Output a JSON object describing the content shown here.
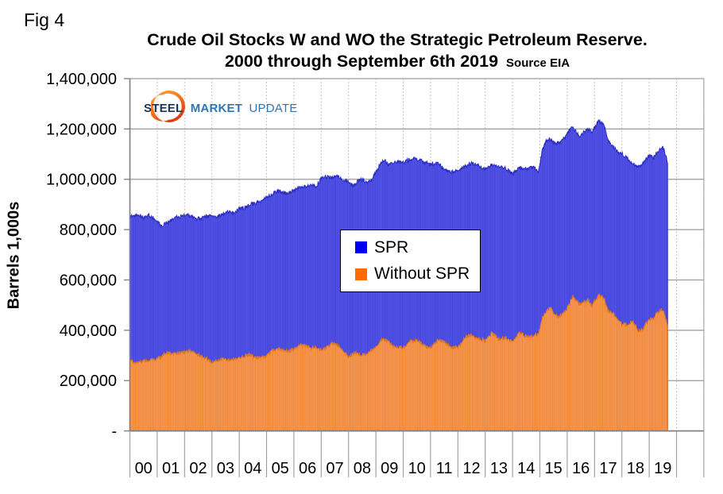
{
  "fig_label": "Fig 4",
  "title": {
    "line1": "Crude Oil Stocks W and WO the Strategic Petroleum Reserve.",
    "line2": "2000 through September 6th 2019",
    "source": "Source EIA"
  },
  "logo": {
    "steel": "STEEL",
    "market": "MARKET",
    "update": "UPDATE"
  },
  "legend": {
    "items": [
      {
        "label": "SPR",
        "color": "#0000f0"
      },
      {
        "label": "Without SPR",
        "color": "#ff6a00"
      }
    ]
  },
  "colors": {
    "spr_fill": "#5b5beb",
    "spr_stripe": "#3336d0",
    "spr_edge": "#2d2fc4",
    "wospr_fill": "#f89b57",
    "wospr_stripe": "#ea7f2e",
    "wospr_edge": "#e0751f",
    "grid": "#9a9a9a",
    "grid_dotted": "#b0b0b0",
    "axis": "#7f7f7f",
    "text": "#000000"
  },
  "chart_data": {
    "type": "area",
    "title": "Crude Oil Stocks W and WO the Strategic Petroleum Reserve. 2000 through September 6th 2019",
    "xlabel": "",
    "ylabel": "Barrels 1,000s",
    "units": "thousand barrels",
    "ylim": [
      0,
      1400000
    ],
    "x_range_years": [
      2000,
      2021
    ],
    "data_end_year": 2019.68,
    "grid": "horizontal solid, yearly vertical dotted",
    "legend_position": "center overlay box",
    "x_tick_labels": [
      "00",
      "01",
      "02",
      "03",
      "04",
      "05",
      "06",
      "07",
      "08",
      "09",
      "10",
      "11",
      "12",
      "13",
      "14",
      "15",
      "16",
      "17",
      "18",
      "19"
    ],
    "y_ticks": [
      {
        "value": 1400000,
        "label": "1,400,000"
      },
      {
        "value": 1200000,
        "label": "1,200,000"
      },
      {
        "value": 1000000,
        "label": "1,000,000"
      },
      {
        "value": 800000,
        "label": "800,000"
      },
      {
        "value": 600000,
        "label": "600,000"
      },
      {
        "value": 400000,
        "label": "400,000"
      },
      {
        "value": 200000,
        "label": "200,000"
      },
      {
        "value": 0,
        "label": "-"
      }
    ],
    "series": [
      {
        "name": "SPR",
        "description": "Total crude oil stocks including the Strategic Petroleum Reserve (top of blue area)",
        "points": [
          [
            2000.0,
            852000
          ],
          [
            2000.3,
            860000
          ],
          [
            2000.5,
            846000
          ],
          [
            2000.7,
            856000
          ],
          [
            2001.0,
            838000
          ],
          [
            2001.15,
            812000
          ],
          [
            2001.4,
            832000
          ],
          [
            2001.6,
            846000
          ],
          [
            2001.8,
            850000
          ],
          [
            2002.0,
            860000
          ],
          [
            2002.2,
            854000
          ],
          [
            2002.4,
            845000
          ],
          [
            2002.6,
            843000
          ],
          [
            2002.8,
            851000
          ],
          [
            2003.0,
            857000
          ],
          [
            2003.2,
            850000
          ],
          [
            2003.4,
            862000
          ],
          [
            2003.6,
            871000
          ],
          [
            2003.8,
            868000
          ],
          [
            2004.0,
            880000
          ],
          [
            2004.2,
            886000
          ],
          [
            2004.4,
            900000
          ],
          [
            2004.6,
            906000
          ],
          [
            2004.8,
            913000
          ],
          [
            2005.0,
            928000
          ],
          [
            2005.2,
            941000
          ],
          [
            2005.4,
            953000
          ],
          [
            2005.6,
            948000
          ],
          [
            2005.8,
            941000
          ],
          [
            2006.0,
            958000
          ],
          [
            2006.2,
            966000
          ],
          [
            2006.4,
            972000
          ],
          [
            2006.6,
            978000
          ],
          [
            2006.8,
            970000
          ],
          [
            2007.0,
            1002000
          ],
          [
            2007.2,
            1010000
          ],
          [
            2007.4,
            1006000
          ],
          [
            2007.6,
            1012000
          ],
          [
            2007.8,
            996000
          ],
          [
            2008.0,
            992000
          ],
          [
            2008.15,
            972000
          ],
          [
            2008.3,
            990000
          ],
          [
            2008.5,
            1000000
          ],
          [
            2008.7,
            985000
          ],
          [
            2008.85,
            1000000
          ],
          [
            2009.0,
            1030000
          ],
          [
            2009.3,
            1080000
          ],
          [
            2009.45,
            1058000
          ],
          [
            2009.6,
            1062000
          ],
          [
            2009.8,
            1072000
          ],
          [
            2010.0,
            1066000
          ],
          [
            2010.3,
            1082000
          ],
          [
            2010.5,
            1080000
          ],
          [
            2010.75,
            1068000
          ],
          [
            2011.0,
            1060000
          ],
          [
            2011.3,
            1062000
          ],
          [
            2011.5,
            1036000
          ],
          [
            2011.75,
            1028000
          ],
          [
            2012.0,
            1036000
          ],
          [
            2012.25,
            1050000
          ],
          [
            2012.5,
            1067000
          ],
          [
            2012.75,
            1055000
          ],
          [
            2013.0,
            1038000
          ],
          [
            2013.25,
            1060000
          ],
          [
            2013.5,
            1053000
          ],
          [
            2013.75,
            1045000
          ],
          [
            2014.0,
            1020000
          ],
          [
            2014.25,
            1045000
          ],
          [
            2014.5,
            1040000
          ],
          [
            2014.75,
            1046000
          ],
          [
            2014.95,
            1032000
          ],
          [
            2015.1,
            1120000
          ],
          [
            2015.25,
            1155000
          ],
          [
            2015.4,
            1160000
          ],
          [
            2015.55,
            1140000
          ],
          [
            2015.7,
            1146000
          ],
          [
            2015.9,
            1162000
          ],
          [
            2016.05,
            1192000
          ],
          [
            2016.2,
            1208000
          ],
          [
            2016.45,
            1172000
          ],
          [
            2016.6,
            1186000
          ],
          [
            2016.75,
            1198000
          ],
          [
            2016.9,
            1188000
          ],
          [
            2017.0,
            1205000
          ],
          [
            2017.15,
            1232000
          ],
          [
            2017.35,
            1214000
          ],
          [
            2017.5,
            1150000
          ],
          [
            2017.7,
            1130000
          ],
          [
            2017.9,
            1100000
          ],
          [
            2018.0,
            1105000
          ],
          [
            2018.15,
            1085000
          ],
          [
            2018.4,
            1062000
          ],
          [
            2018.6,
            1050000
          ],
          [
            2018.75,
            1065000
          ],
          [
            2018.9,
            1080000
          ],
          [
            2019.0,
            1095000
          ],
          [
            2019.15,
            1085000
          ],
          [
            2019.3,
            1110000
          ],
          [
            2019.45,
            1130000
          ],
          [
            2019.55,
            1115000
          ],
          [
            2019.68,
            1061000
          ]
        ]
      },
      {
        "name": "Without SPR",
        "description": "Commercial crude oil stocks excluding the Strategic Petroleum Reserve (orange area)",
        "points": [
          [
            2000.0,
            284000
          ],
          [
            2000.2,
            270000
          ],
          [
            2000.4,
            276000
          ],
          [
            2000.6,
            280000
          ],
          [
            2000.8,
            283000
          ],
          [
            2001.0,
            286000
          ],
          [
            2001.2,
            300000
          ],
          [
            2001.4,
            312000
          ],
          [
            2001.6,
            305000
          ],
          [
            2001.8,
            310000
          ],
          [
            2002.0,
            312000
          ],
          [
            2002.2,
            320000
          ],
          [
            2002.4,
            310000
          ],
          [
            2002.6,
            295000
          ],
          [
            2002.8,
            290000
          ],
          [
            2003.0,
            272000
          ],
          [
            2003.2,
            281000
          ],
          [
            2003.4,
            286000
          ],
          [
            2003.6,
            282000
          ],
          [
            2003.8,
            288000
          ],
          [
            2004.0,
            291000
          ],
          [
            2004.2,
            298000
          ],
          [
            2004.4,
            302000
          ],
          [
            2004.6,
            290000
          ],
          [
            2004.8,
            293000
          ],
          [
            2005.0,
            296000
          ],
          [
            2005.2,
            318000
          ],
          [
            2005.4,
            328000
          ],
          [
            2005.6,
            320000
          ],
          [
            2005.8,
            318000
          ],
          [
            2006.0,
            324000
          ],
          [
            2006.2,
            340000
          ],
          [
            2006.4,
            342000
          ],
          [
            2006.6,
            330000
          ],
          [
            2006.8,
            335000
          ],
          [
            2007.0,
            320000
          ],
          [
            2007.2,
            332000
          ],
          [
            2007.4,
            350000
          ],
          [
            2007.6,
            340000
          ],
          [
            2007.8,
            315000
          ],
          [
            2008.0,
            295000
          ],
          [
            2008.2,
            310000
          ],
          [
            2008.4,
            305000
          ],
          [
            2008.6,
            300000
          ],
          [
            2008.8,
            320000
          ],
          [
            2009.0,
            332000
          ],
          [
            2009.2,
            365000
          ],
          [
            2009.4,
            360000
          ],
          [
            2009.6,
            340000
          ],
          [
            2009.8,
            335000
          ],
          [
            2010.0,
            328000
          ],
          [
            2010.25,
            355000
          ],
          [
            2010.5,
            362000
          ],
          [
            2010.75,
            340000
          ],
          [
            2011.0,
            330000
          ],
          [
            2011.25,
            360000
          ],
          [
            2011.5,
            354000
          ],
          [
            2011.75,
            335000
          ],
          [
            2012.0,
            330000
          ],
          [
            2012.25,
            372000
          ],
          [
            2012.5,
            382000
          ],
          [
            2012.75,
            365000
          ],
          [
            2013.0,
            360000
          ],
          [
            2013.25,
            390000
          ],
          [
            2013.5,
            365000
          ],
          [
            2013.75,
            370000
          ],
          [
            2014.0,
            352000
          ],
          [
            2014.25,
            390000
          ],
          [
            2014.5,
            375000
          ],
          [
            2014.75,
            380000
          ],
          [
            2014.95,
            385000
          ],
          [
            2015.1,
            452000
          ],
          [
            2015.25,
            480000
          ],
          [
            2015.4,
            488000
          ],
          [
            2015.55,
            462000
          ],
          [
            2015.7,
            455000
          ],
          [
            2015.9,
            472000
          ],
          [
            2016.05,
            497000
          ],
          [
            2016.2,
            535000
          ],
          [
            2016.45,
            505000
          ],
          [
            2016.6,
            512000
          ],
          [
            2016.75,
            520000
          ],
          [
            2016.9,
            500000
          ],
          [
            2017.0,
            515000
          ],
          [
            2017.15,
            540000
          ],
          [
            2017.35,
            528000
          ],
          [
            2017.5,
            475000
          ],
          [
            2017.7,
            465000
          ],
          [
            2017.9,
            442000
          ],
          [
            2018.0,
            425000
          ],
          [
            2018.15,
            422000
          ],
          [
            2018.4,
            435000
          ],
          [
            2018.6,
            398000
          ],
          [
            2018.75,
            404000
          ],
          [
            2018.9,
            428000
          ],
          [
            2019.0,
            445000
          ],
          [
            2019.15,
            448000
          ],
          [
            2019.3,
            468000
          ],
          [
            2019.45,
            483000
          ],
          [
            2019.55,
            468000
          ],
          [
            2019.68,
            416000
          ]
        ]
      }
    ]
  }
}
